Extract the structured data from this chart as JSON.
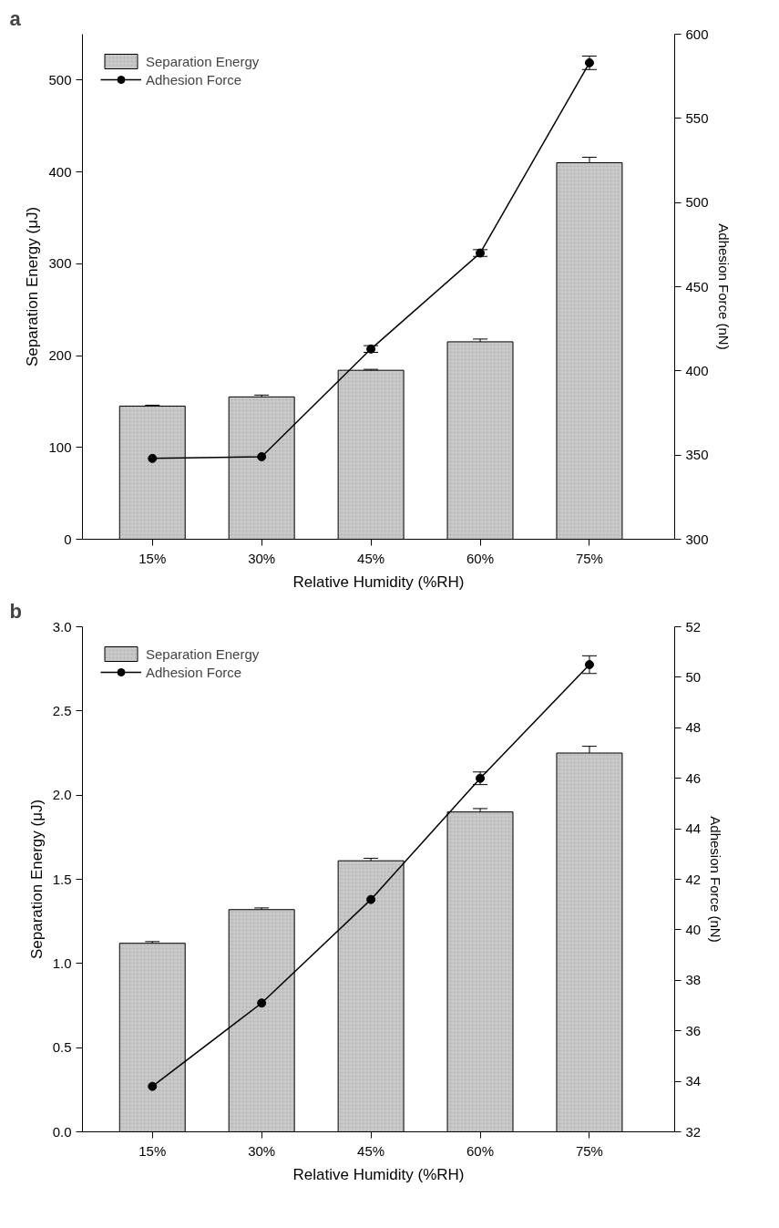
{
  "chart_data": [
    {
      "type": "bar",
      "title": "a",
      "xlabel": "Relative Humidity (%RH)",
      "ylabel": "Separation Energy (μJ)",
      "y2label": "Adhesion Force (nN)",
      "categories": [
        "15%",
        "30%",
        "45%",
        "60%",
        "75%"
      ],
      "series": [
        {
          "name": "Separation Energy",
          "color": "#c8c8c8",
          "values": [
            145,
            155,
            184,
            215,
            410
          ],
          "errors": [
            1,
            2,
            1,
            3,
            6
          ]
        },
        {
          "name": "Adhesion Force",
          "type": "line",
          "axis": "y2",
          "marker": "circle",
          "color": "#000000",
          "values": [
            348,
            349,
            413,
            470,
            583
          ],
          "errors": [
            1.5,
            2,
            2,
            2,
            4
          ]
        }
      ],
      "ylim": [
        0,
        550
      ],
      "yticks": [
        0,
        100,
        200,
        300,
        400,
        500
      ],
      "y2lim": [
        300,
        600
      ],
      "y2ticks": [
        300,
        350,
        400,
        450,
        500,
        550,
        600
      ],
      "legend": "top left",
      "grid": false
    },
    {
      "type": "bar",
      "title": "b",
      "xlabel": "Relative Humidity (%RH)",
      "ylabel": "Separation Energy (μJ)",
      "y2label": "Adhesion Force (nN)",
      "categories": [
        "15%",
        "30%",
        "45%",
        "60%",
        "75%"
      ],
      "series": [
        {
          "name": "Separation Energy",
          "color": "#c8c8c8",
          "values": [
            1.12,
            1.32,
            1.61,
            1.9,
            2.25
          ],
          "errors": [
            0.01,
            0.01,
            0.015,
            0.02,
            0.04
          ]
        },
        {
          "name": "Adhesion Force",
          "type": "line",
          "axis": "y2",
          "marker": "circle",
          "color": "#000000",
          "values": [
            33.8,
            37.1,
            41.2,
            46.0,
            50.5
          ],
          "errors": [
            0.2,
            0.25,
            0.2,
            0.25,
            0.35
          ]
        }
      ],
      "ylim": [
        0,
        3
      ],
      "yticks": [
        {
          "value": 0,
          "label": "0.0"
        },
        0.5,
        {
          "value": 1,
          "label": "1.0"
        },
        1.5,
        {
          "value": 2,
          "label": "2.0"
        },
        2.5,
        {
          "value": 3,
          "label": "3.0"
        }
      ],
      "y2lim": [
        32,
        52
      ],
      "y2ticks": [
        32,
        34,
        36,
        38,
        40,
        42,
        44,
        46,
        48,
        50,
        52
      ],
      "legend": "top left",
      "grid": false
    }
  ]
}
